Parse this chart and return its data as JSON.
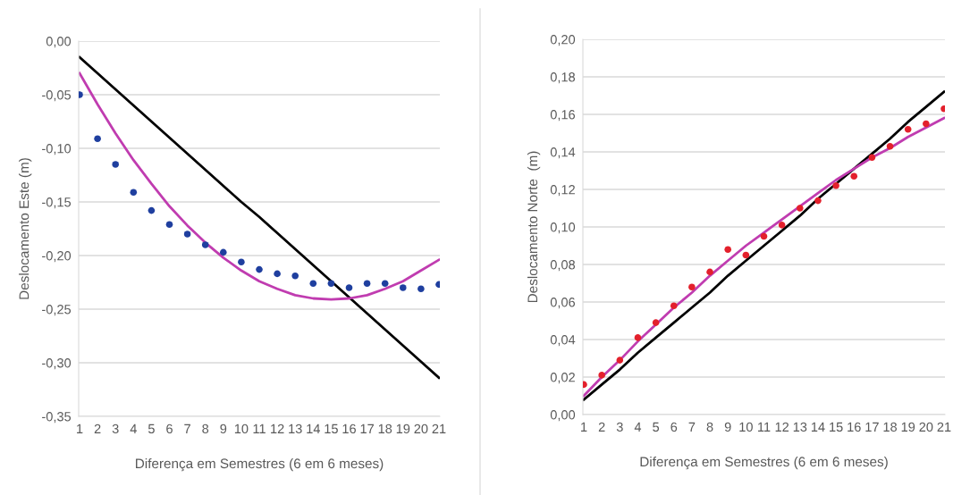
{
  "chart_data": [
    {
      "type": "scatter",
      "xlabel": "Diferença em Semestres (6 em 6 meses)",
      "ylabel": "Deslocamento Este (m)",
      "categories": [
        "1",
        "2",
        "3",
        "4",
        "5",
        "6",
        "7",
        "8",
        "9",
        "10",
        "11",
        "12",
        "13",
        "14",
        "15",
        "16",
        "17",
        "18",
        "19",
        "20",
        "21"
      ],
      "series": [
        {
          "color": "#1f3f9f",
          "marker": "circle",
          "values": [
            -0.05,
            -0.091,
            -0.115,
            -0.141,
            -0.158,
            -0.171,
            -0.18,
            -0.19,
            -0.197,
            -0.206,
            -0.213,
            -0.217,
            -0.219,
            -0.226,
            -0.226,
            -0.23,
            -0.226,
            -0.226,
            -0.23,
            -0.231,
            -0.227
          ]
        },
        {
          "type": "line",
          "color": "#000000",
          "values": [
            -0.015,
            -0.03,
            -0.045,
            -0.06,
            -0.075,
            -0.09,
            -0.105,
            -0.12,
            -0.135,
            -0.15,
            -0.164,
            -0.179,
            -0.194,
            -0.209,
            -0.224,
            -0.239,
            -0.254,
            -0.269,
            -0.284,
            -0.299,
            -0.314
          ]
        },
        {
          "type": "line",
          "color": "#c03cb0",
          "values": [
            -0.03,
            -0.059,
            -0.086,
            -0.111,
            -0.133,
            -0.154,
            -0.172,
            -0.188,
            -0.202,
            -0.214,
            -0.224,
            -0.231,
            -0.237,
            -0.24,
            -0.241,
            -0.24,
            -0.237,
            -0.231,
            -0.224,
            -0.214,
            -0.204
          ]
        }
      ],
      "ylim": [
        -0.35,
        0
      ],
      "yticks": [
        {
          "value": -0.35,
          "label": "-0,35"
        },
        {
          "value": -0.3,
          "label": "-0,30"
        },
        {
          "value": -0.25,
          "label": "-0,25"
        },
        {
          "value": -0.2,
          "label": "-0,20"
        },
        {
          "value": -0.15,
          "label": "-0,15"
        },
        {
          "value": -0.1,
          "label": "-0,10"
        },
        {
          "value": -0.05,
          "label": "-0,05"
        },
        {
          "value": 0,
          "label": "0,00"
        }
      ],
      "grid": "y",
      "legend": false
    },
    {
      "type": "scatter",
      "xlabel": "Diferença em Semestres (6 em 6 meses)",
      "ylabel": "Deslocamento Norte  (m)",
      "categories": [
        "1",
        "2",
        "3",
        "4",
        "5",
        "6",
        "7",
        "8",
        "9",
        "10",
        "11",
        "12",
        "13",
        "14",
        "15",
        "16",
        "17",
        "18",
        "19",
        "20",
        "21"
      ],
      "series": [
        {
          "color": "#e3202c",
          "marker": "circle",
          "values": [
            0.016,
            0.021,
            0.029,
            0.041,
            0.049,
            0.058,
            0.068,
            0.076,
            0.088,
            0.085,
            0.095,
            0.101,
            0.11,
            0.114,
            0.122,
            0.127,
            0.137,
            0.143,
            0.152,
            0.155,
            0.163
          ]
        },
        {
          "type": "line",
          "color": "#000000",
          "values": [
            0.008,
            0.016,
            0.024,
            0.033,
            0.041,
            0.049,
            0.057,
            0.065,
            0.074,
            0.082,
            0.09,
            0.098,
            0.106,
            0.115,
            0.123,
            0.131,
            0.139,
            0.147,
            0.156,
            0.164,
            0.172
          ]
        },
        {
          "type": "line",
          "color": "#c03cb0",
          "values": [
            0.01,
            0.02,
            0.029,
            0.039,
            0.048,
            0.057,
            0.065,
            0.074,
            0.082,
            0.09,
            0.097,
            0.104,
            0.111,
            0.118,
            0.125,
            0.131,
            0.137,
            0.142,
            0.148,
            0.153,
            0.158
          ]
        }
      ],
      "ylim": [
        0,
        0.2
      ],
      "yticks": [
        {
          "value": 0,
          "label": "0,00"
        },
        {
          "value": 0.02,
          "label": "0,02"
        },
        {
          "value": 0.04,
          "label": "0,04"
        },
        {
          "value": 0.06,
          "label": "0,06"
        },
        {
          "value": 0.08,
          "label": "0,08"
        },
        {
          "value": 0.1,
          "label": "0,10"
        },
        {
          "value": 0.12,
          "label": "0,12"
        },
        {
          "value": 0.14,
          "label": "0,14"
        },
        {
          "value": 0.16,
          "label": "0,16"
        },
        {
          "value": 0.18,
          "label": "0,18"
        },
        {
          "value": 0.2,
          "label": "0,20"
        }
      ],
      "grid": "y",
      "legend": false
    }
  ]
}
